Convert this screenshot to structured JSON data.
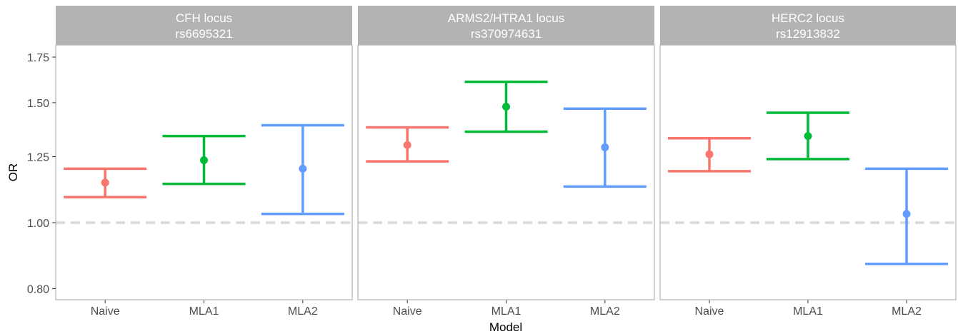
{
  "chart_data": {
    "type": "errorbar",
    "xlabel": "Model",
    "ylabel": "OR",
    "y_scale": "log",
    "ylim": [
      0.78,
      1.82
    ],
    "y_ticks": [
      "0.80",
      "1.00",
      "1.25",
      "1.50",
      "1.75"
    ],
    "categories": [
      "Naive",
      "MLA1",
      "MLA2"
    ],
    "reference_line": {
      "y": 1.0,
      "style": "dashed",
      "color": "#d9d9d9"
    },
    "grid": false,
    "colors": {
      "Naive": "#F8766D",
      "MLA1": "#00BA38",
      "MLA2": "#619CFF"
    },
    "panels": [
      {
        "title_line1": "CFH locus",
        "title_line2": "rs6695321",
        "points": [
          {
            "model": "Naive",
            "or": 1.145,
            "low": 1.09,
            "high": 1.2
          },
          {
            "model": "MLA1",
            "or": 1.235,
            "low": 1.14,
            "high": 1.34
          },
          {
            "model": "MLA2",
            "or": 1.2,
            "low": 1.03,
            "high": 1.39
          }
        ]
      },
      {
        "title_line1": "ARMS2/HTRA1 locus",
        "title_line2": "rs370974631",
        "points": [
          {
            "model": "Naive",
            "or": 1.3,
            "low": 1.23,
            "high": 1.38
          },
          {
            "model": "MLA1",
            "or": 1.48,
            "low": 1.36,
            "high": 1.61
          },
          {
            "model": "MLA2",
            "or": 1.29,
            "low": 1.13,
            "high": 1.47
          }
        ]
      },
      {
        "title_line1": "HERC2 locus",
        "title_line2": "rs12913832",
        "points": [
          {
            "model": "Naive",
            "or": 1.26,
            "low": 1.19,
            "high": 1.33
          },
          {
            "model": "MLA1",
            "or": 1.34,
            "low": 1.24,
            "high": 1.45
          },
          {
            "model": "MLA2",
            "or": 1.03,
            "low": 0.87,
            "high": 1.2
          }
        ]
      }
    ]
  }
}
